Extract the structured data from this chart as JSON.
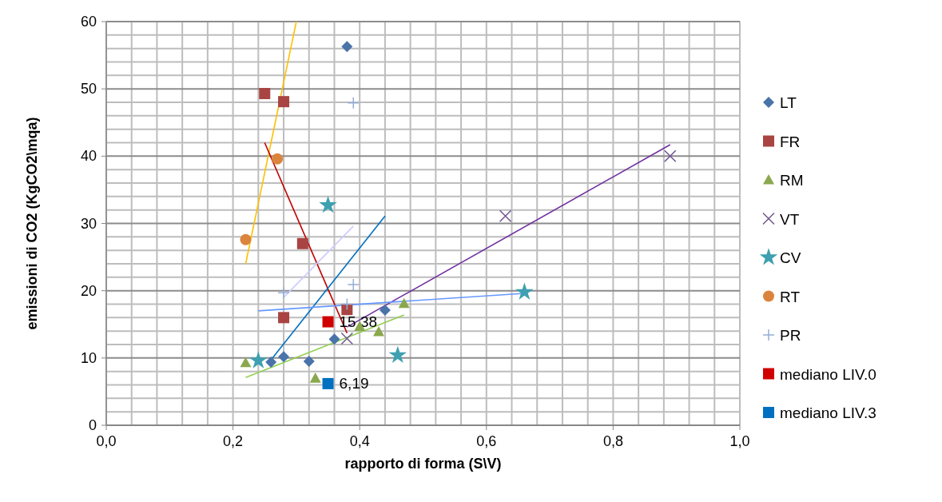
{
  "chart_data": {
    "type": "scatter",
    "xlabel": "rapporto di forma (S\\V)",
    "ylabel": "emissioni di CO2 (KgCO2\\mqa)",
    "xlim": [
      0,
      1
    ],
    "ylim": [
      0,
      60
    ],
    "xticks": [
      {
        "value": 0,
        "label": "0,0"
      },
      {
        "value": 0.04,
        "label": null
      },
      {
        "value": 0.08,
        "label": null
      },
      {
        "value": 0.12,
        "label": null
      },
      {
        "value": 0.16,
        "label": null
      },
      {
        "value": 0.2,
        "label": "0,2"
      },
      {
        "value": 0.24,
        "label": null
      },
      {
        "value": 0.28,
        "label": null
      },
      {
        "value": 0.32,
        "label": null
      },
      {
        "value": 0.36,
        "label": null
      },
      {
        "value": 0.4,
        "label": "0,4"
      },
      {
        "value": 0.44,
        "label": null
      },
      {
        "value": 0.48,
        "label": null
      },
      {
        "value": 0.52,
        "label": null
      },
      {
        "value": 0.56,
        "label": null
      },
      {
        "value": 0.6,
        "label": "0,6"
      },
      {
        "value": 0.64,
        "label": null
      },
      {
        "value": 0.68,
        "label": null
      },
      {
        "value": 0.72,
        "label": null
      },
      {
        "value": 0.76,
        "label": null
      },
      {
        "value": 0.8,
        "label": "0,8"
      },
      {
        "value": 0.84,
        "label": null
      },
      {
        "value": 0.88,
        "label": null
      },
      {
        "value": 0.92,
        "label": null
      },
      {
        "value": 0.96,
        "label": null
      },
      {
        "value": 1,
        "label": "1,0"
      }
    ],
    "yticks": [
      0,
      {
        "value": 2,
        "label": null
      },
      {
        "value": 4,
        "label": null
      },
      {
        "value": 6,
        "label": null
      },
      {
        "value": 8,
        "label": null
      },
      10,
      {
        "value": 12,
        "label": null
      },
      {
        "value": 14,
        "label": null
      },
      {
        "value": 16,
        "label": null
      },
      {
        "value": 18,
        "label": null
      },
      20,
      {
        "value": 22,
        "label": null
      },
      {
        "value": 24,
        "label": null
      },
      {
        "value": 26,
        "label": null
      },
      {
        "value": 28,
        "label": null
      },
      30,
      {
        "value": 32,
        "label": null
      },
      {
        "value": 34,
        "label": null
      },
      {
        "value": 36,
        "label": null
      },
      {
        "value": 38,
        "label": null
      },
      40,
      {
        "value": 42,
        "label": null
      },
      {
        "value": 44,
        "label": null
      },
      {
        "value": 46,
        "label": null
      },
      {
        "value": 48,
        "label": null
      },
      50,
      {
        "value": 52,
        "label": null
      },
      {
        "value": 54,
        "label": null
      },
      {
        "value": 56,
        "label": null
      },
      {
        "value": 58,
        "label": null
      },
      60
    ],
    "grid": true,
    "legend": "right",
    "series": [
      {
        "name": "LT",
        "color": "#4a73aa",
        "marker": "diamond",
        "x": [
          0.38,
          0.26,
          0.28,
          0.32,
          0.36,
          0.44
        ],
        "values": [
          56.3,
          9.4,
          10.2,
          9.5,
          12.8,
          17.1
        ]
      },
      {
        "name": "FR",
        "color": "#a84442",
        "marker": "square",
        "x": [
          0.25,
          0.28,
          0.31,
          0.28,
          0.38
        ],
        "values": [
          49.3,
          48.1,
          27.0,
          16.0,
          17.2
        ]
      },
      {
        "name": "RM",
        "color": "#8aa84e",
        "marker": "triangle",
        "x": [
          0.22,
          0.33,
          0.4,
          0.43,
          0.47
        ],
        "values": [
          9.3,
          7.0,
          14.7,
          13.9,
          18.1
        ]
      },
      {
        "name": "VT",
        "color": "#70558f",
        "marker": "cross",
        "x": [
          0.38,
          0.63,
          0.89
        ],
        "values": [
          12.9,
          31.1,
          40.0
        ]
      },
      {
        "name": "CV",
        "color": "#3ea0b0",
        "marker": "star",
        "x": [
          0.35,
          0.24,
          0.46,
          0.66
        ],
        "values": [
          32.7,
          9.6,
          10.4,
          19.8
        ]
      },
      {
        "name": "RT",
        "color": "#db843d",
        "marker": "circle",
        "x": [
          0.27,
          0.22
        ],
        "values": [
          39.6,
          27.6
        ]
      },
      {
        "name": "PR",
        "color": "#95aed6",
        "marker": "plus",
        "x": [
          0.39,
          0.28,
          0.39,
          0.38
        ],
        "values": [
          47.9,
          19.7,
          20.9,
          18.0
        ]
      },
      {
        "name": "mediano LIV.0",
        "color": "#d00000",
        "marker": "square",
        "x": [
          0.35
        ],
        "values": [
          15.38
        ],
        "value_labels": [
          "15,38"
        ]
      },
      {
        "name": "mediano LIV.3",
        "color": "#0070c0",
        "marker": "square",
        "x": [
          0.35
        ],
        "values": [
          6.19
        ],
        "value_labels": [
          "6,19"
        ]
      },
      {
        "type": "line",
        "color": "#ffc000",
        "marker": "none",
        "x": [
          0.22,
          0.3
        ],
        "values": [
          24.0,
          60
        ]
      },
      {
        "type": "line",
        "color": "#c00000",
        "marker": "none",
        "x": [
          0.25,
          0.38
        ],
        "values": [
          42.0,
          13.7
        ]
      },
      {
        "type": "line",
        "color": "#ccccff",
        "marker": "none",
        "x": [
          0.28,
          0.39
        ],
        "values": [
          19.0,
          29.6
        ]
      },
      {
        "type": "line",
        "color": "#0070c0",
        "marker": "none",
        "x": [
          0.26,
          0.44
        ],
        "values": [
          9.7,
          31.1
        ]
      },
      {
        "type": "line",
        "color": "#7030a0",
        "marker": "none",
        "x": [
          0.38,
          0.89
        ],
        "values": [
          14.6,
          41.7
        ]
      },
      {
        "type": "line",
        "color": "#6699ff",
        "marker": "none",
        "x": [
          0.24,
          0.66
        ],
        "values": [
          17.0,
          19.6
        ]
      },
      {
        "type": "line",
        "color": "#92d050",
        "marker": "none",
        "x": [
          0.22,
          0.47
        ],
        "values": [
          7.1,
          16.4
        ]
      }
    ]
  }
}
